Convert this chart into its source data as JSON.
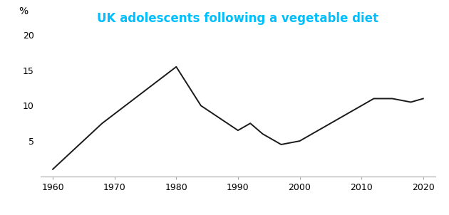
{
  "title": "UK adolescents following a vegetable diet",
  "title_color": "#00BFFF",
  "ylabel": "%",
  "x": [
    1960,
    1968,
    1980,
    1984,
    1990,
    1992,
    1994,
    1997,
    2000,
    2012,
    2015,
    2018,
    2020
  ],
  "y": [
    1.0,
    7.5,
    15.5,
    10.0,
    6.5,
    7.5,
    6.0,
    4.5,
    5.0,
    11.0,
    11.0,
    10.5,
    11.0
  ],
  "xlim": [
    1958,
    2022
  ],
  "ylim": [
    0,
    21
  ],
  "xticks": [
    1960,
    1970,
    1980,
    1990,
    2000,
    2010,
    2020
  ],
  "yticks": [
    5,
    10,
    15,
    20
  ],
  "line_color": "#1a1a1a",
  "line_width": 1.4,
  "background_color": "#ffffff",
  "title_fontsize": 12,
  "tick_fontsize": 9,
  "ylabel_fontsize": 10,
  "spine_color": "#aaaaaa"
}
